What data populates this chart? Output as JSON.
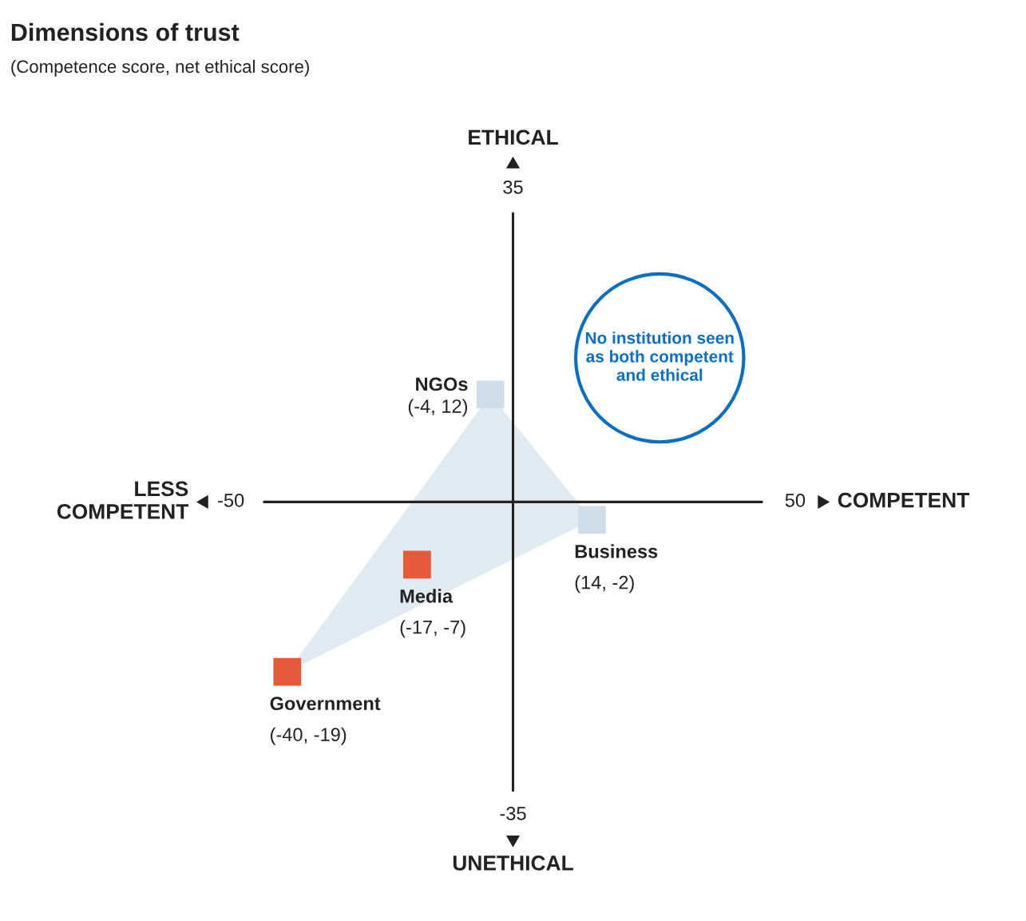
{
  "chart_data": {
    "type": "scatter",
    "title": "Dimensions of trust",
    "subtitle": "(Competence score, net ethical score)",
    "xlabel": "COMPETENT",
    "ylabel": "ETHICAL",
    "annotations": [
      "LESS\nCOMPETENT",
      "UNETHICAL",
      "No institution seen\nas both competent\nand ethical"
    ],
    "xlim": [
      -50,
      50
    ],
    "ylim": [
      -35,
      35
    ],
    "xticks": [
      -50,
      50
    ],
    "yticks": [
      -35,
      35
    ],
    "marker": "square",
    "series": [
      {
        "name": "NGOs",
        "color": "#cfdde8",
        "x": [
          -4
        ],
        "values": [
          12
        ],
        "value_labels": [
          "(-4, 12)"
        ]
      },
      {
        "name": "Business",
        "color": "#cfdde8",
        "x": [
          14
        ],
        "values": [
          -2
        ],
        "value_labels": [
          "(14, -2)"
        ]
      },
      {
        "name": "Media",
        "color": "#e8583a",
        "x": [
          -17
        ],
        "values": [
          -7
        ],
        "value_labels": [
          "(-17, -7)"
        ]
      },
      {
        "name": "Government",
        "color": "#e8583a",
        "x": [
          -40
        ],
        "values": [
          -19
        ],
        "value_labels": [
          "(-40, -19)"
        ]
      }
    ]
  }
}
